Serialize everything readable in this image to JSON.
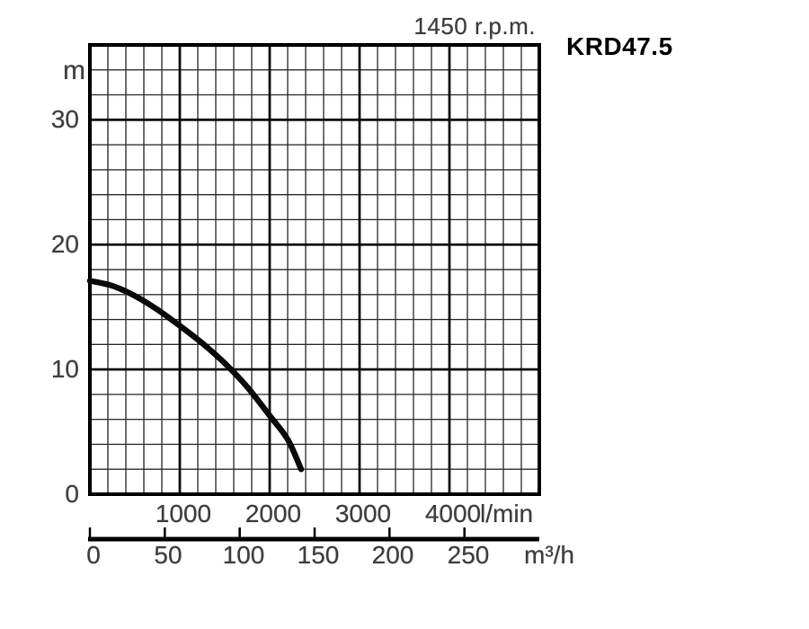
{
  "title": "1450 r.p.m.",
  "model": "KRD47.5",
  "chart_data": {
    "type": "line",
    "title": "1450 r.p.m.",
    "series_label": "KRD47.5",
    "grid": "on",
    "y_axis": {
      "unit": "m",
      "min": 0,
      "max": 36,
      "major_step": 10,
      "minor_step": 2,
      "tick_values": [
        30,
        20,
        10,
        0
      ],
      "tick_labels": [
        "30",
        "20",
        "10",
        "0"
      ]
    },
    "x_axis_primary": {
      "unit": "l/min",
      "min": 0,
      "max": 5000,
      "major_step": 1000,
      "minor_step": 200,
      "tick_values": [
        1000,
        2000,
        3000,
        4000
      ],
      "tick_labels": [
        "1000",
        "2000",
        "3000",
        "4000"
      ]
    },
    "x_axis_secondary": {
      "unit": "m³/h",
      "min": 0,
      "max": 300,
      "tick_values": [
        0,
        50,
        100,
        150,
        200,
        250
      ],
      "tick_labels": [
        "0",
        "50",
        "100",
        "150",
        "200",
        "250"
      ]
    },
    "series": [
      {
        "name": "head-vs-flow-curve",
        "x_lmin": [
          0,
          250,
          500,
          750,
          1000,
          1250,
          1500,
          1750,
          2000,
          2200,
          2350
        ],
        "y_m": [
          17.1,
          16.7,
          15.9,
          14.8,
          13.5,
          12.1,
          10.5,
          8.6,
          6.3,
          4.4,
          2.0
        ]
      }
    ],
    "colors": {
      "background": "#ffffff",
      "grid_minor": "#333333",
      "grid_major": "#0d0d0d",
      "border": "#000000",
      "curve": "#0a0a0a",
      "label_text": "#3d3d3d",
      "model_text": "#000000"
    }
  }
}
